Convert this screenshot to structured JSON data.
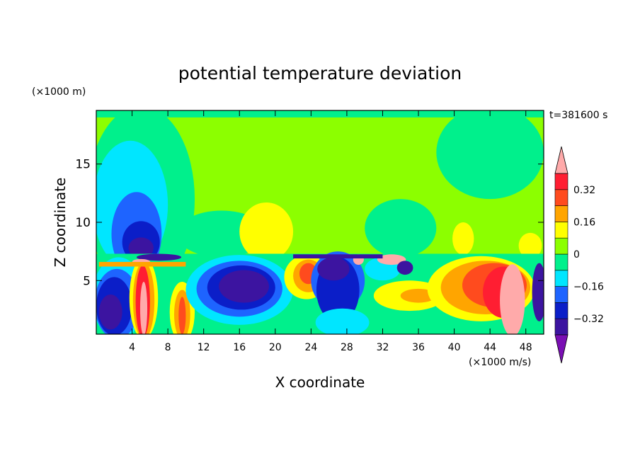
{
  "chart_data": {
    "type": "heatmap",
    "title": "potential temperature deviation",
    "xlabel": "X coordinate",
    "ylabel": "Z coordinate",
    "x_units": "(×1000 m/s)",
    "y_units": "(×1000 m)",
    "time_label": "t=381600 s",
    "xlim": [
      0,
      50
    ],
    "ylim": [
      0.4,
      19.6
    ],
    "x_ticks": [
      4,
      8,
      12,
      16,
      20,
      24,
      28,
      32,
      36,
      40,
      44,
      48
    ],
    "y_ticks": [
      5,
      10,
      15
    ],
    "colorbar": {
      "labels": [
        "0.32",
        "0.16",
        "0",
        "−0.16",
        "−0.32"
      ],
      "label_values": [
        0.32,
        0.16,
        0,
        -0.16,
        -0.32
      ],
      "levels": [
        -0.4,
        -0.32,
        -0.24,
        -0.16,
        -0.08,
        0,
        0.08,
        0.16,
        0.24,
        0.32,
        0.4
      ],
      "colors": [
        "#7a0fb4",
        "#3c14a0",
        "#0b1ec8",
        "#1e64ff",
        "#00e6ff",
        "#00f08c",
        "#8cff00",
        "#ffff00",
        "#ffa500",
        "#ff4b1e",
        "#ff1e32",
        "#ffaaaa"
      ],
      "extend": "both"
    },
    "regions": [
      {
        "color": "#8cff00",
        "kind": "rect",
        "x0": 0,
        "x1": 50,
        "y0": 0.4,
        "y1": 19.6
      },
      {
        "color": "#00f08c",
        "kind": "rect",
        "x0": 0,
        "x1": 50,
        "y0": 19.0,
        "y1": 19.6
      },
      {
        "color": "#00f08c",
        "kind": "ell",
        "cx": 5,
        "cy": 12,
        "rx": 6,
        "ry": 8
      },
      {
        "color": "#00f08c",
        "kind": "ell",
        "cx": 44,
        "cy": 16,
        "rx": 6,
        "ry": 4
      },
      {
        "color": "#00f08c",
        "kind": "ell",
        "cx": 34,
        "cy": 9.5,
        "rx": 4,
        "ry": 2.5
      },
      {
        "color": "#00f08c",
        "kind": "ell",
        "cx": 14,
        "cy": 9,
        "rx": 5,
        "ry": 2
      },
      {
        "color": "#00e6ff",
        "kind": "ell",
        "cx": 3.8,
        "cy": 11.5,
        "rx": 4.2,
        "ry": 5.5
      },
      {
        "color": "#1e64ff",
        "kind": "ell",
        "cx": 4.5,
        "cy": 9,
        "rx": 2.8,
        "ry": 3.6
      },
      {
        "color": "#0b1ec8",
        "kind": "ell",
        "cx": 5,
        "cy": 8.3,
        "rx": 2.1,
        "ry": 1.8
      },
      {
        "color": "#3c14a0",
        "kind": "ell",
        "cx": 5,
        "cy": 7.8,
        "rx": 1.4,
        "ry": 0.9
      },
      {
        "color": "#ffff00",
        "kind": "ell",
        "cx": 19,
        "cy": 9.2,
        "rx": 3,
        "ry": 2.5
      },
      {
        "color": "#ffff00",
        "kind": "ell",
        "cx": 41,
        "cy": 8.6,
        "rx": 1.2,
        "ry": 1.4
      },
      {
        "color": "#ffff00",
        "kind": "ell",
        "cx": 48.5,
        "cy": 8,
        "rx": 1.3,
        "ry": 1.1
      },
      {
        "color": "#00f08c",
        "kind": "rect",
        "x0": 0,
        "x1": 50,
        "y0": 0.4,
        "y1": 7.3
      },
      {
        "color": "#00e6ff",
        "kind": "ell",
        "cx": 2.5,
        "cy": 3.5,
        "rx": 3,
        "ry": 3.5
      },
      {
        "color": "#1e64ff",
        "kind": "ell",
        "cx": 2.3,
        "cy": 3,
        "rx": 2.5,
        "ry": 3
      },
      {
        "color": "#0b1ec8",
        "kind": "ell",
        "cx": 2,
        "cy": 2.8,
        "rx": 2,
        "ry": 2.5
      },
      {
        "color": "#3c14a0",
        "kind": "ell",
        "cx": 1.6,
        "cy": 2.3,
        "rx": 1.3,
        "ry": 1.5
      },
      {
        "color": "#ffff00",
        "kind": "ell",
        "cx": 5.3,
        "cy": 3.5,
        "rx": 1.6,
        "ry": 3.5
      },
      {
        "color": "#ffa500",
        "kind": "ell",
        "cx": 5.3,
        "cy": 3.3,
        "rx": 1.2,
        "ry": 3.3
      },
      {
        "color": "#ff1e32",
        "kind": "ell",
        "cx": 5.2,
        "cy": 3.2,
        "rx": 0.8,
        "ry": 3.1
      },
      {
        "color": "#ffaaaa",
        "kind": "ell",
        "cx": 5.3,
        "cy": 2.6,
        "rx": 0.4,
        "ry": 2.3
      },
      {
        "color": "#ffff00",
        "kind": "ell",
        "cx": 9.6,
        "cy": 2.3,
        "rx": 1.4,
        "ry": 2.6
      },
      {
        "color": "#ffa500",
        "kind": "ell",
        "cx": 9.6,
        "cy": 2.1,
        "rx": 0.9,
        "ry": 2.1
      },
      {
        "color": "#ff4b1e",
        "kind": "ell",
        "cx": 9.6,
        "cy": 2,
        "rx": 0.4,
        "ry": 1.6
      },
      {
        "color": "#00e6ff",
        "kind": "ell",
        "cx": 16,
        "cy": 4.2,
        "rx": 6,
        "ry": 3
      },
      {
        "color": "#1e64ff",
        "kind": "ell",
        "cx": 16,
        "cy": 4.3,
        "rx": 4.8,
        "ry": 2.4
      },
      {
        "color": "#0b1ec8",
        "kind": "ell",
        "cx": 16.2,
        "cy": 4.4,
        "rx": 3.8,
        "ry": 1.9
      },
      {
        "color": "#3c14a0",
        "kind": "ell",
        "cx": 16.5,
        "cy": 4.5,
        "rx": 2.8,
        "ry": 1.4
      },
      {
        "color": "#ffff00",
        "kind": "ell",
        "cx": 23.5,
        "cy": 5.3,
        "rx": 2.5,
        "ry": 1.9
      },
      {
        "color": "#ffa500",
        "kind": "ell",
        "cx": 23.7,
        "cy": 5.4,
        "rx": 1.7,
        "ry": 1.4
      },
      {
        "color": "#ff4b1e",
        "kind": "ell",
        "cx": 23.7,
        "cy": 5.6,
        "rx": 1,
        "ry": 0.9
      },
      {
        "color": "#1e64ff",
        "kind": "ell",
        "cx": 27,
        "cy": 5,
        "rx": 3,
        "ry": 2.5
      },
      {
        "color": "#0b1ec8",
        "kind": "ell",
        "cx": 27,
        "cy": 4.2,
        "rx": 2.4,
        "ry": 2.8
      },
      {
        "color": "#3c14a0",
        "kind": "ell",
        "cx": 26.5,
        "cy": 6,
        "rx": 1.8,
        "ry": 1
      },
      {
        "color": "#00e6ff",
        "kind": "ell",
        "cx": 27.5,
        "cy": 1.4,
        "rx": 3,
        "ry": 1.2
      },
      {
        "color": "#ffff00",
        "kind": "ell",
        "cx": 35,
        "cy": 3.7,
        "rx": 4,
        "ry": 1.3
      },
      {
        "color": "#ffa500",
        "kind": "ell",
        "cx": 36,
        "cy": 3.7,
        "rx": 2,
        "ry": 0.6
      },
      {
        "color": "#ffff00",
        "kind": "ell",
        "cx": 43,
        "cy": 4.3,
        "rx": 6,
        "ry": 2.8
      },
      {
        "color": "#ffa500",
        "kind": "ell",
        "cx": 43.5,
        "cy": 4.4,
        "rx": 5,
        "ry": 2.3
      },
      {
        "color": "#ff4b1e",
        "kind": "ell",
        "cx": 44.5,
        "cy": 4.6,
        "rx": 3.6,
        "ry": 1.9
      },
      {
        "color": "#ff1e32",
        "kind": "ell",
        "cx": 45.5,
        "cy": 4,
        "rx": 2.3,
        "ry": 2.2
      },
      {
        "color": "#ffaaaa",
        "kind": "ell",
        "cx": 46.5,
        "cy": 3.3,
        "rx": 1.4,
        "ry": 3.1
      },
      {
        "color": "#3c14a0",
        "kind": "ell",
        "cx": 49.5,
        "cy": 4,
        "rx": 0.8,
        "ry": 2.5
      },
      {
        "color": "#00e6ff",
        "kind": "ell",
        "cx": 32,
        "cy": 6,
        "rx": 2,
        "ry": 1
      },
      {
        "color": "#ffaaaa",
        "kind": "ell",
        "cx": 33,
        "cy": 6.8,
        "rx": 1.6,
        "ry": 0.45
      },
      {
        "color": "#ffaaaa",
        "kind": "ell",
        "cx": 29.3,
        "cy": 6.8,
        "rx": 0.6,
        "ry": 0.45
      },
      {
        "color": "#3c14a0",
        "kind": "ell",
        "cx": 34.5,
        "cy": 6.1,
        "rx": 0.9,
        "ry": 0.6
      },
      {
        "color": "#3c14a0",
        "kind": "ell",
        "cx": 7,
        "cy": 7,
        "rx": 2.5,
        "ry": 0.3
      },
      {
        "color": "#ffaaaa",
        "kind": "ell",
        "cx": 5,
        "cy": 6.6,
        "rx": 1,
        "ry": 0.25
      },
      {
        "color": "#3c14a0",
        "kind": "rect",
        "x0": 22,
        "x1": 32,
        "y0": 6.9,
        "y1": 7.25
      },
      {
        "color": "#ffa500",
        "kind": "rect",
        "x0": 0.3,
        "x1": 10,
        "y0": 6.2,
        "y1": 6.6
      }
    ]
  }
}
